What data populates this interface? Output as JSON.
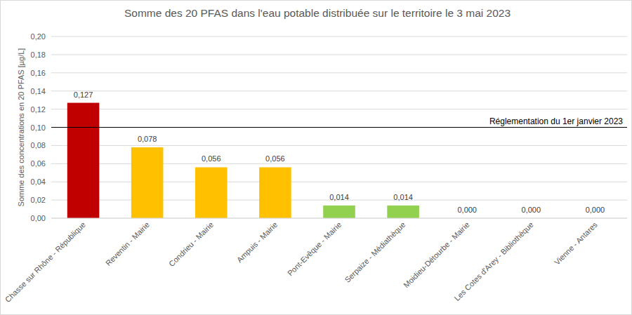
{
  "chart_data": {
    "type": "bar",
    "title": "Somme des 20 PFAS dans l'eau potable distribuée sur le territoire le 3 mai 2023",
    "y_label": "Somme des concentrations en 20 PFAS [µg/L]",
    "categories": [
      "Chasse sur Rhône - République",
      "Reventin - Mairie",
      "Condrieu - Mairie",
      "Ampuis - Mairie",
      "Pont-Evêque - Mairie",
      "Serpaize - Médiathèque",
      "Moidieu-Détourbe - Mairie",
      "Les Cotes d'Arey - Bibliothèque",
      "Vienne - Antares"
    ],
    "values": [
      0.127,
      0.078,
      0.056,
      0.056,
      0.014,
      0.014,
      0,
      0,
      0
    ],
    "value_labels": [
      "0,127",
      "0,078",
      "0,056",
      "0,056",
      "0,014",
      "0,014",
      "0,000",
      "0,000",
      "0,000"
    ],
    "colors": [
      "#c00000",
      "#ffc000",
      "#ffc000",
      "#ffc000",
      "#92d050",
      "#92d050",
      "#92d050",
      "#92d050",
      "#92d050"
    ],
    "ylim": [
      0,
      0.2
    ],
    "yticks": [
      {
        "value": 0,
        "label": "0,00"
      },
      {
        "value": 0.02,
        "label": "0,02"
      },
      {
        "value": 0.04,
        "label": "0,04"
      },
      {
        "value": 0.06,
        "label": "0,06"
      },
      {
        "value": 0.08,
        "label": "0,08"
      },
      {
        "value": 0.1,
        "label": "0,10"
      },
      {
        "value": 0.12,
        "label": "0,12"
      },
      {
        "value": 0.14,
        "label": "0,14"
      },
      {
        "value": 0.16,
        "label": "0,16"
      },
      {
        "value": 0.18,
        "label": "0,18"
      },
      {
        "value": 0.2,
        "label": "0,20"
      }
    ],
    "annotations": [
      {
        "value": 0.1,
        "label": "Réglementation du 1er janvier 2023"
      }
    ],
    "grid": true,
    "data_labels": true
  }
}
